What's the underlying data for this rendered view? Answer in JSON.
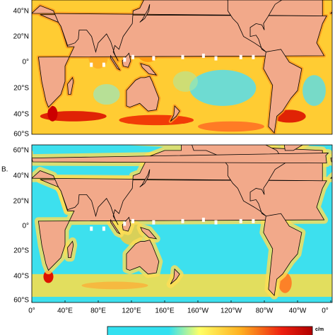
{
  "panel_b_label": "B.",
  "panel_a": {
    "y_labels": [
      "40°N",
      "20°N",
      "0°",
      "20°S",
      "40°S",
      "60°S"
    ]
  },
  "panel_b": {
    "y_labels": [
      "60°N",
      "40°N",
      "20°N",
      "0°",
      "20°S",
      "40°S",
      "60°S"
    ]
  },
  "x_labels": [
    "0°",
    "40°E",
    "80°E",
    "120°E",
    "160°E",
    "160°W",
    "120°W",
    "80°W",
    "40°W",
    "0°"
  ],
  "colorbar_unit": "c/m"
}
